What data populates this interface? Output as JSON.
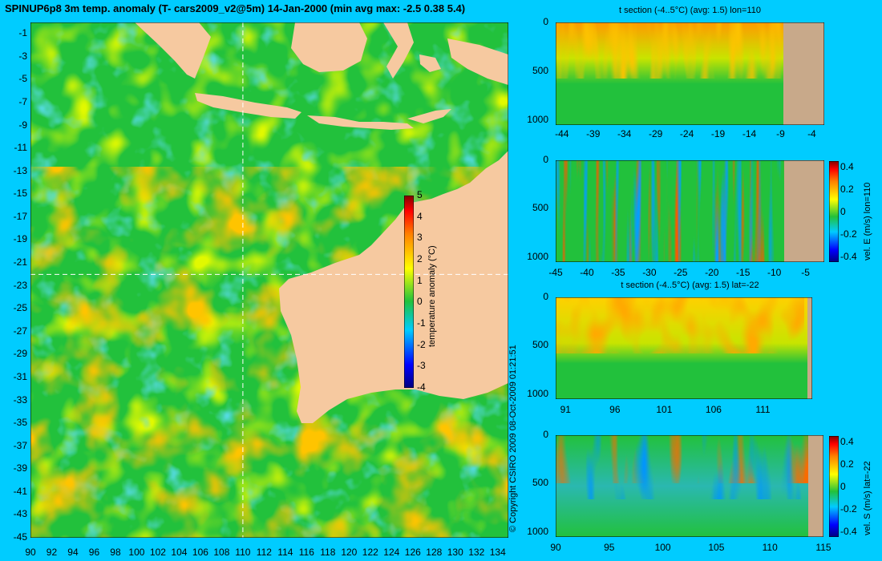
{
  "colors": {
    "background": "#00ccff",
    "land": "#f6c9a0",
    "seabed": "#c8a98a",
    "sea_base": "#22c13c",
    "warm": "#ff8c00",
    "cool": "#19b6d6"
  },
  "title": "SPINUP6p8 3m temp. anomaly (T- cars2009_v2@5m) 14-Jan-2000 (min avg max: -2.5 0.38 5.4)",
  "copyright": "© Copyright CSIRO 2009   08-Oct-2009 01:21:51",
  "chart_data": [
    {
      "type": "heatmap",
      "name": "map",
      "title": "SPINUP6p8 3m temp. anomaly (T- cars2009_v2@5m) 14-Jan-2000 (min avg max: -2.5 0.38 5.4)",
      "xticks": [
        "90",
        "92",
        "94",
        "96",
        "98",
        "100",
        "102",
        "104",
        "106",
        "108",
        "110",
        "112",
        "114",
        "116",
        "118",
        "120",
        "122",
        "124",
        "126",
        "128",
        "130",
        "132",
        "134"
      ],
      "yticks": [
        "-1",
        "-3",
        "-5",
        "-7",
        "-9",
        "-11",
        "-13",
        "-15",
        "-17",
        "-19",
        "-21",
        "-23",
        "-25",
        "-27",
        "-29",
        "-31",
        "-33",
        "-35",
        "-37",
        "-39",
        "-41",
        "-43",
        "-45"
      ],
      "xlim": [
        90,
        135
      ],
      "ylim": [
        -45,
        0
      ],
      "crosshair": {
        "lon": 110,
        "lat": -22
      },
      "colorbar": {
        "label": "temperature anomaly (°C)",
        "ticks": [
          "5",
          "4",
          "3",
          "2",
          "1",
          "0",
          "-1",
          "-2",
          "-3",
          "-4"
        ],
        "range": [
          -4,
          5
        ]
      },
      "stats": {
        "min": -2.5,
        "avg": 0.38,
        "max": 5.4
      }
    },
    {
      "type": "heatmap",
      "name": "t-section-lon",
      "title": "t section (-4..5°C) (avg: 1.5) lon=110",
      "xticks": [
        "-44",
        "-39",
        "-34",
        "-29",
        "-24",
        "-19",
        "-14",
        "-9",
        "-4"
      ],
      "yticks": [
        "0",
        "500",
        "1000"
      ],
      "xlim": [
        -45,
        -2
      ],
      "ylim": [
        1050,
        0
      ]
    },
    {
      "type": "heatmap",
      "name": "vel-e-lon",
      "title": "",
      "xticks": [
        "-45",
        "-40",
        "-35",
        "-30",
        "-25",
        "-20",
        "-15",
        "-10",
        "-5"
      ],
      "yticks": [
        "0",
        "500",
        "1000"
      ],
      "xlim": [
        -45,
        -2
      ],
      "ylim": [
        1050,
        0
      ],
      "colorbar": {
        "label": "vel. E (m/s) lon=110",
        "ticks": [
          "0.4",
          "0.2",
          "0",
          "-0.2",
          "-0.4"
        ],
        "range": [
          -0.45,
          0.45
        ]
      }
    },
    {
      "type": "heatmap",
      "name": "t-section-lat",
      "title": "t section (-4..5°C) (avg: 1.5) lat=-22",
      "xticks": [
        "91",
        "96",
        "101",
        "106",
        "111"
      ],
      "yticks": [
        "0",
        "500",
        "1000"
      ],
      "xlim": [
        90,
        116
      ],
      "ylim": [
        1050,
        0
      ]
    },
    {
      "type": "heatmap",
      "name": "vel-s-lat",
      "title": "",
      "xticks": [
        "90",
        "95",
        "100",
        "105",
        "110",
        "115"
      ],
      "yticks": [
        "0",
        "500",
        "1000"
      ],
      "xlim": [
        90,
        115
      ],
      "ylim": [
        1050,
        0
      ],
      "colorbar": {
        "label": "vel. S (m/s) lat=-22",
        "ticks": [
          "0.4",
          "0.2",
          "0",
          "-0.2",
          "-0.4"
        ],
        "range": [
          -0.45,
          0.45
        ]
      }
    }
  ]
}
